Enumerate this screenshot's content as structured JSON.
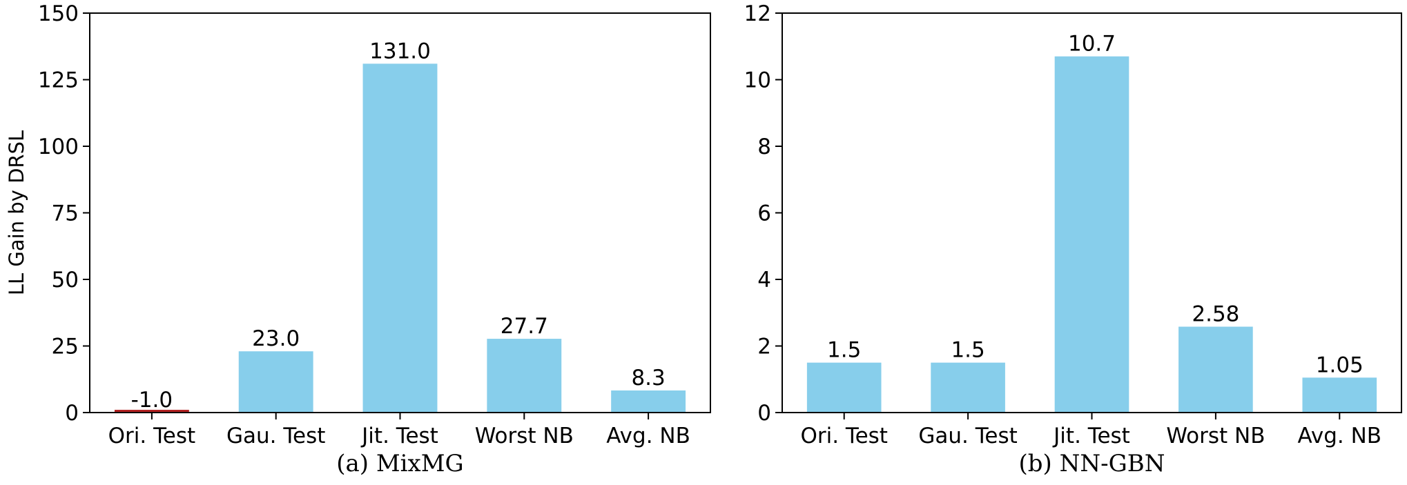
{
  "chart_data": [
    {
      "type": "bar",
      "caption": "(a) MixMG",
      "categories": [
        "Ori. Test",
        "Gau. Test",
        "Jit. Test",
        "Worst NB",
        "Avg. NB"
      ],
      "values": [
        -1.0,
        23.0,
        131.0,
        27.7,
        8.3
      ],
      "value_labels": [
        "-1.0",
        "23.0",
        "131.0",
        "27.7",
        "8.3"
      ],
      "bar_colors": [
        "#b22222",
        "#87ceeb",
        "#87ceeb",
        "#87ceeb",
        "#87ceeb"
      ],
      "ylabel": "LL Gain by DRSL",
      "ylim": [
        0,
        150
      ],
      "yticks": [
        0,
        25,
        50,
        75,
        100,
        125,
        150
      ],
      "grid": false
    },
    {
      "type": "bar",
      "caption": "(b) NN-GBN",
      "categories": [
        "Ori. Test",
        "Gau. Test",
        "Jit. Test",
        "Worst NB",
        "Avg. NB"
      ],
      "values": [
        1.5,
        1.5,
        10.7,
        2.58,
        1.05
      ],
      "value_labels": [
        "1.5",
        "1.5",
        "10.7",
        "2.58",
        "1.05"
      ],
      "bar_colors": [
        "#87ceeb",
        "#87ceeb",
        "#87ceeb",
        "#87ceeb",
        "#87ceeb"
      ],
      "ylabel": "",
      "ylim": [
        0,
        12
      ],
      "yticks": [
        0,
        2,
        4,
        6,
        8,
        10,
        12
      ],
      "grid": false
    }
  ]
}
